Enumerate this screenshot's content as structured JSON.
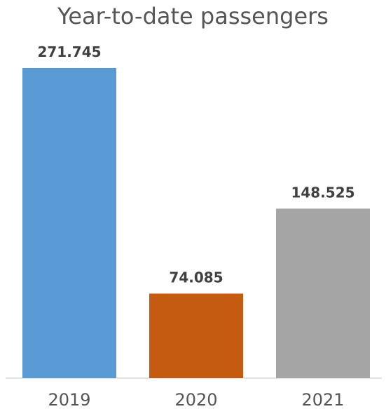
{
  "chart_data": {
    "type": "bar",
    "title": "Year-to-date passengers",
    "categories": [
      "2019",
      "2020",
      "2021"
    ],
    "values": [
      271745,
      74085,
      148525
    ],
    "value_labels": [
      "271.745",
      "74.085",
      "148.525"
    ],
    "colors": [
      "#5b9bd5",
      "#c55a11",
      "#a5a5a5"
    ],
    "xlabel": "",
    "ylabel": "",
    "ylim": [
      0,
      271745
    ],
    "grid": false,
    "legend": "none"
  }
}
